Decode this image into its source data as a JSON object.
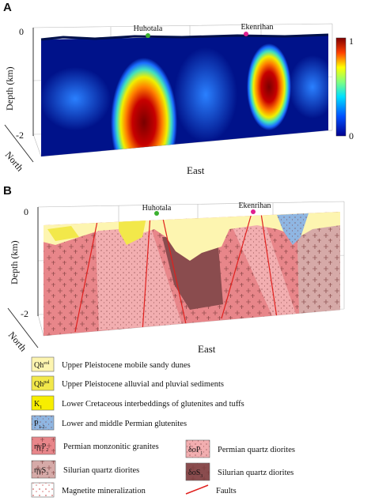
{
  "panel_a": {
    "label": "A",
    "depth_zero": "0",
    "depth_bottom": "-2",
    "y_axis_label": "Depth (km)",
    "north_label": "North",
    "east_label": "East",
    "sites": [
      "Huhotala",
      "Ekenrihan"
    ],
    "colorbar": {
      "max": "1",
      "min": "0"
    }
  },
  "panel_b": {
    "label": "B",
    "depth_zero": "0",
    "depth_bottom": "-2",
    "y_axis_label": "Depth (km)",
    "north_label": "North",
    "east_label": "East",
    "sites": [
      "Huhotala",
      "Ekenrihan"
    ]
  },
  "legend": [
    {
      "symbol": "Qh",
      "sup": "eol",
      "text": "Upper Pleistocene mobile sandy dunes",
      "color": "#fdf5b0"
    },
    {
      "symbol": "Qh",
      "sup": "pal",
      "text": "Upper Pleistocene alluvial and pluvial sediments",
      "color": "#f2e84a"
    },
    {
      "symbol": "K",
      "sub": "1",
      "text": "Lower Cretaceous interbeddings of glutenites and tuffs",
      "color": "#f7ee00"
    },
    {
      "symbol": "P",
      "sub": "1-2",
      "text": "Lower and middle Permian glutenites",
      "color": "#8fb6e2"
    },
    {
      "symbol": "ηγP",
      "sub": "2",
      "text": "Permian monzonitic granites",
      "color": "#e8868a"
    },
    {
      "symbol": "ηγS",
      "sub": "3",
      "text": "Silurian quartz diorites",
      "color": "#d6aaa8"
    },
    {
      "symbol": "δoP",
      "sub": "1",
      "text": "Permian quartz diorites",
      "color": "#f2aeb0"
    },
    {
      "symbol": "δoS",
      "sub": "3",
      "text": "Silurian quartz diorites",
      "color": "#8a4c4e"
    },
    {
      "text": "Magnetite mineralization",
      "color": "#ffffff"
    },
    {
      "text": "Faults",
      "color": "#e0201e"
    }
  ]
}
